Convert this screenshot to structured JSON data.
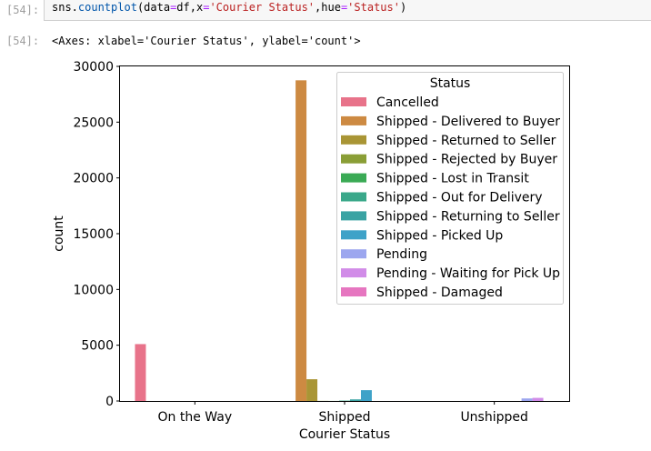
{
  "cell_in": {
    "prompt": "[54]:",
    "code": {
      "p1": "sns.",
      "fn": "countplot",
      "p2": "(data",
      "eq1": "=",
      "p3": "df,x",
      "eq2": "=",
      "s1": "'Courier Status'",
      "p4": ",hue",
      "eq3": "=",
      "s2": "'Status'",
      "p5": ")"
    }
  },
  "cell_out": {
    "prompt": "[54]:",
    "text": "<Axes: xlabel='Courier Status', ylabel='count'>"
  },
  "chart_data": {
    "type": "bar",
    "xlabel": "Courier Status",
    "ylabel": "count",
    "ylim": [
      0,
      30000
    ],
    "yticks": [
      0,
      5000,
      10000,
      15000,
      20000,
      25000,
      30000
    ],
    "categories": [
      "On the Way",
      "Shipped",
      "Unshipped"
    ],
    "legend": {
      "title": "Status",
      "position": "top-right"
    },
    "series": [
      {
        "name": "Cancelled",
        "color": "#e8738a",
        "values": [
          5100,
          0,
          0
        ]
      },
      {
        "name": "Shipped - Delivered to Buyer",
        "color": "#cd8a42",
        "values": [
          0,
          28750,
          0
        ]
      },
      {
        "name": "Shipped - Returned to Seller",
        "color": "#a99535",
        "values": [
          0,
          1950,
          0
        ]
      },
      {
        "name": "Shipped - Rejected by Buyer",
        "color": "#8a9e36",
        "values": [
          0,
          11,
          0
        ]
      },
      {
        "name": "Shipped - Lost in Transit",
        "color": "#3aaa55",
        "values": [
          0,
          5,
          0
        ]
      },
      {
        "name": "Shipped - Out for Delivery",
        "color": "#3aa88a",
        "values": [
          0,
          35,
          0
        ]
      },
      {
        "name": "Shipped - Returning to Seller",
        "color": "#3aa3a3",
        "values": [
          0,
          145,
          0
        ]
      },
      {
        "name": "Shipped - Picked Up",
        "color": "#3ea2c8",
        "values": [
          0,
          970,
          0
        ]
      },
      {
        "name": "Pending",
        "color": "#9ca6ef",
        "values": [
          0,
          0,
          230
        ]
      },
      {
        "name": "Pending - Waiting for Pick Up",
        "color": "#d18ce8",
        "values": [
          0,
          0,
          280
        ]
      },
      {
        "name": "Shipped - Damaged",
        "color": "#e676c0",
        "values": [
          0,
          1,
          0
        ]
      }
    ]
  }
}
